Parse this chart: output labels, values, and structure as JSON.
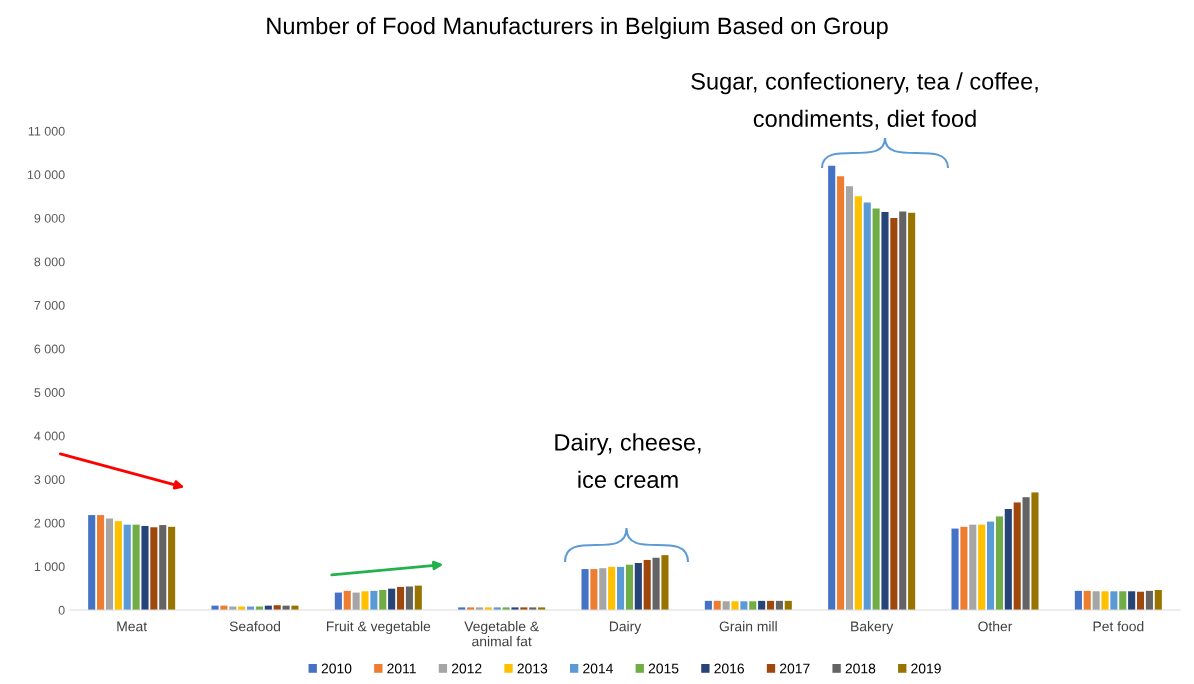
{
  "chart_data": {
    "type": "bar",
    "title": "Number of Food Manufacturers in Belgium Based on Group",
    "categories": [
      "Meat",
      "Seafood",
      "Fruit & vegetable",
      "Vegetable &\nanimal fat",
      "Dairy",
      "Grain mill",
      "Bakery",
      "Other",
      "Pet food"
    ],
    "series": [
      {
        "name": "2010",
        "color": "#4472c4",
        "values": [
          2180,
          100,
          400,
          60,
          940,
          210,
          10200,
          1870,
          440
        ]
      },
      {
        "name": "2011",
        "color": "#ed7d31",
        "values": [
          2180,
          100,
          440,
          60,
          940,
          210,
          9960,
          1910,
          440
        ]
      },
      {
        "name": "2012",
        "color": "#a5a5a5",
        "values": [
          2100,
          80,
          400,
          60,
          960,
          200,
          9730,
          1960,
          430
        ]
      },
      {
        "name": "2013",
        "color": "#ffc000",
        "values": [
          2040,
          80,
          430,
          60,
          990,
          200,
          9500,
          1960,
          430
        ]
      },
      {
        "name": "2014",
        "color": "#5b9bd5",
        "values": [
          1960,
          80,
          440,
          60,
          990,
          200,
          9360,
          2030,
          430
        ]
      },
      {
        "name": "2015",
        "color": "#70ad47",
        "values": [
          1960,
          80,
          460,
          60,
          1040,
          200,
          9220,
          2150,
          430
        ]
      },
      {
        "name": "2016",
        "color": "#264478",
        "values": [
          1930,
          100,
          490,
          60,
          1080,
          210,
          9140,
          2320,
          430
        ]
      },
      {
        "name": "2017",
        "color": "#9e480e",
        "values": [
          1900,
          110,
          530,
          60,
          1150,
          210,
          9000,
          2470,
          420
        ]
      },
      {
        "name": "2018",
        "color": "#636363",
        "values": [
          1950,
          100,
          540,
          60,
          1200,
          210,
          9150,
          2590,
          440
        ]
      },
      {
        "name": "2019",
        "color": "#997300",
        "values": [
          1910,
          100,
          560,
          60,
          1260,
          210,
          9120,
          2700,
          460
        ]
      }
    ],
    "ylim": [
      0,
      11000
    ],
    "yticks": [
      0,
      {
        "value": 1000,
        "label": "1 000"
      },
      {
        "value": 2000,
        "label": "2 000"
      },
      {
        "value": 3000,
        "label": "3 000"
      },
      {
        "value": 4000,
        "label": "4 000"
      },
      {
        "value": 5000,
        "label": "5 000"
      },
      {
        "value": 6000,
        "label": "6 000"
      },
      {
        "value": 7000,
        "label": "7 000"
      },
      {
        "value": 8000,
        "label": "8 000"
      },
      {
        "value": 9000,
        "label": "9 000"
      },
      {
        "value": 10000,
        "label": "10 000"
      },
      {
        "value": 11000,
        "label": "11 000"
      }
    ],
    "grid": false,
    "legend": "bottom",
    "annotations": [
      "Dairy, cheese,\nice cream",
      "Sugar, confectionery, tea / coffee,\ncondiments, diet food"
    ]
  }
}
